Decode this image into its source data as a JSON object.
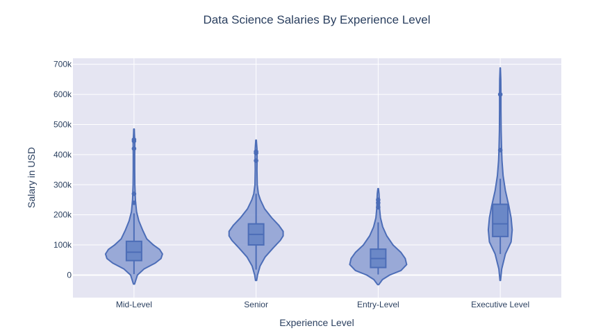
{
  "chart_data": {
    "type": "violin",
    "title": "Data Science Salaries By Experience Level",
    "xlabel": "Experience Level",
    "ylabel": "Salary in USD",
    "ylim": [
      -75000,
      720000
    ],
    "yticks": [
      0,
      100000,
      200000,
      300000,
      400000,
      500000,
      600000,
      700000
    ],
    "ytick_labels": [
      "0",
      "100k",
      "200k",
      "300k",
      "400k",
      "500k",
      "600k",
      "700k"
    ],
    "grid": true,
    "colors": {
      "fill": "#8c9fd2",
      "line": "#4c6db7",
      "box": "#6b88c7",
      "plot_bg": "#e5e5f2",
      "grid": "#ffffff"
    },
    "categories": [
      "Mid-Level",
      "Senior",
      "Entry-Level",
      "Executive Level"
    ],
    "series": [
      {
        "category": "Mid-Level",
        "q1": 48000,
        "median": 76000,
        "q3": 112000,
        "whisker_low": 3000,
        "whisker_high": 205000,
        "y_min": -30000,
        "y_max": 485000,
        "density": [
          [
            -30000,
            0.02
          ],
          [
            0,
            0.12
          ],
          [
            20000,
            0.35
          ],
          [
            40000,
            0.75
          ],
          [
            55000,
            0.95
          ],
          [
            70000,
            1.0
          ],
          [
            85000,
            0.9
          ],
          [
            100000,
            0.68
          ],
          [
            120000,
            0.45
          ],
          [
            150000,
            0.3
          ],
          [
            180000,
            0.17
          ],
          [
            210000,
            0.09
          ],
          [
            250000,
            0.05
          ],
          [
            300000,
            0.03
          ],
          [
            350000,
            0.025
          ],
          [
            400000,
            0.025
          ],
          [
            440000,
            0.03
          ],
          [
            470000,
            0.015
          ],
          [
            485000,
            0.01
          ]
        ],
        "outliers": [
          240000,
          270000,
          420000,
          445000,
          450000
        ]
      },
      {
        "category": "Senior",
        "q1": 100000,
        "median": 135000,
        "q3": 170000,
        "whisker_low": 18000,
        "whisker_high": 270000,
        "y_min": -18000,
        "y_max": 448000,
        "density": [
          [
            -18000,
            0.02
          ],
          [
            0,
            0.05
          ],
          [
            30000,
            0.14
          ],
          [
            60000,
            0.32
          ],
          [
            90000,
            0.6
          ],
          [
            115000,
            0.85
          ],
          [
            130000,
            0.95
          ],
          [
            145000,
            0.95
          ],
          [
            165000,
            0.8
          ],
          [
            190000,
            0.55
          ],
          [
            220000,
            0.3
          ],
          [
            250000,
            0.15
          ],
          [
            270000,
            0.08
          ],
          [
            300000,
            0.04
          ],
          [
            350000,
            0.03
          ],
          [
            390000,
            0.035
          ],
          [
            420000,
            0.03
          ],
          [
            448000,
            0.01
          ]
        ],
        "outliers": [
          380000,
          405000,
          410000
        ]
      },
      {
        "category": "Entry-Level",
        "q1": 25000,
        "median": 55000,
        "q3": 86000,
        "whisker_low": 2000,
        "whisker_high": 175000,
        "y_min": -32000,
        "y_max": 287000,
        "density": [
          [
            -32000,
            0.02
          ],
          [
            -15000,
            0.15
          ],
          [
            0,
            0.4
          ],
          [
            15000,
            0.8
          ],
          [
            35000,
            1.0
          ],
          [
            55000,
            0.95
          ],
          [
            75000,
            0.8
          ],
          [
            100000,
            0.52
          ],
          [
            130000,
            0.3
          ],
          [
            160000,
            0.16
          ],
          [
            190000,
            0.08
          ],
          [
            220000,
            0.05
          ],
          [
            250000,
            0.04
          ],
          [
            270000,
            0.03
          ],
          [
            287000,
            0.01
          ]
        ],
        "outliers": [
          225000,
          240000,
          250000
        ]
      },
      {
        "category": "Executive Level",
        "q1": 128000,
        "median": 170000,
        "q3": 235000,
        "whisker_low": 70000,
        "whisker_high": 320000,
        "y_min": -18000,
        "y_max": 688000,
        "density": [
          [
            -18000,
            0.01
          ],
          [
            20000,
            0.05
          ],
          [
            70000,
            0.18
          ],
          [
            110000,
            0.38
          ],
          [
            150000,
            0.42
          ],
          [
            190000,
            0.38
          ],
          [
            230000,
            0.3
          ],
          [
            280000,
            0.18
          ],
          [
            330000,
            0.1
          ],
          [
            380000,
            0.06
          ],
          [
            420000,
            0.045
          ],
          [
            480000,
            0.03
          ],
          [
            550000,
            0.025
          ],
          [
            600000,
            0.025
          ],
          [
            650000,
            0.02
          ],
          [
            688000,
            0.005
          ]
        ],
        "outliers": [
          415000,
          600000
        ]
      }
    ]
  }
}
